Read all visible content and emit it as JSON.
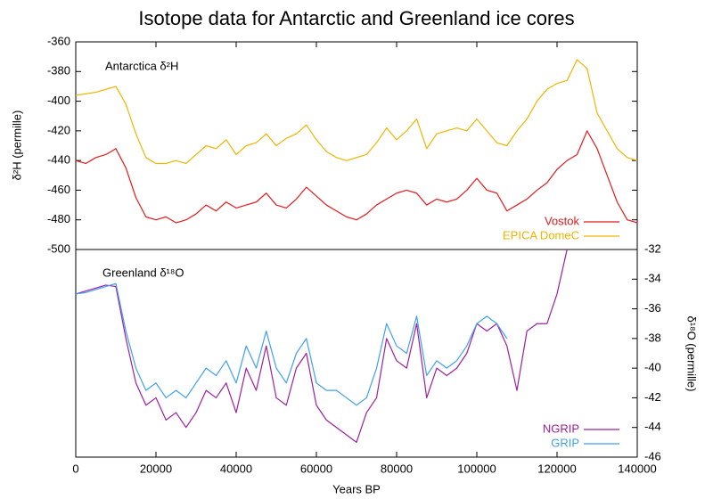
{
  "chart_data": [
    {
      "type": "line",
      "title": "Isotope data for Antarctic and Greenland ice cores",
      "annotation": "Antarctica δ²H",
      "ylabel": "δ²H (permille)",
      "x": [
        0,
        2500,
        5000,
        7500,
        10000,
        12500,
        15000,
        17500,
        20000,
        22500,
        25000,
        27500,
        30000,
        32500,
        35000,
        37500,
        40000,
        42500,
        45000,
        47500,
        50000,
        52500,
        55000,
        57500,
        60000,
        62500,
        65000,
        67500,
        70000,
        72500,
        75000,
        77500,
        80000,
        82500,
        85000,
        87500,
        90000,
        92500,
        95000,
        97500,
        100000,
        102500,
        105000,
        107500,
        110000,
        112500,
        115000,
        117500,
        120000,
        122500,
        125000,
        127500,
        130000,
        132500,
        135000,
        137500,
        140000
      ],
      "series": [
        {
          "name": "Vostok",
          "color": "#e41a1c",
          "values": [
            -440,
            -442,
            -438,
            -436,
            -432,
            -445,
            -465,
            -478,
            -480,
            -478,
            -482,
            -480,
            -476,
            -470,
            -474,
            -468,
            -472,
            -470,
            -468,
            -462,
            -470,
            -472,
            -466,
            -458,
            -464,
            -470,
            -474,
            -478,
            -480,
            -476,
            -470,
            -466,
            -462,
            -460,
            -462,
            -470,
            -466,
            -468,
            -466,
            -460,
            -452,
            -460,
            -462,
            -474,
            -470,
            -466,
            -460,
            -455,
            -446,
            -440,
            -436,
            -420,
            -432,
            -450,
            -468,
            -480,
            -482
          ]
        },
        {
          "name": "EPICA DomeC",
          "color": "#f0b400",
          "values": [
            -396,
            -395,
            -394,
            -392,
            -390,
            -402,
            -422,
            -438,
            -442,
            -442,
            -440,
            -442,
            -436,
            -430,
            -432,
            -426,
            -436,
            -430,
            -428,
            -422,
            -430,
            -425,
            -422,
            -416,
            -426,
            -434,
            -438,
            -440,
            -438,
            -436,
            -428,
            -418,
            -426,
            -420,
            -412,
            -432,
            -422,
            -420,
            -418,
            -420,
            -412,
            -420,
            -428,
            -430,
            -420,
            -412,
            -400,
            -392,
            -388,
            -386,
            -372,
            -378,
            -408,
            -420,
            -432,
            -438,
            -440
          ]
        }
      ],
      "xlim": [
        0,
        140000
      ],
      "ylim": [
        -500,
        -360
      ],
      "yticks": [
        -500,
        -480,
        -460,
        -440,
        -420,
        -400,
        -380,
        -360
      ],
      "legend": "lower right"
    },
    {
      "type": "line",
      "annotation": "Greenland δ¹⁸O",
      "y2label": "δ¹⁸O (permille)",
      "xlabel": "Years BP",
      "x": [
        0,
        2500,
        5000,
        7500,
        10000,
        12500,
        15000,
        17500,
        20000,
        22500,
        25000,
        27500,
        30000,
        32500,
        35000,
        37500,
        40000,
        42500,
        45000,
        47500,
        50000,
        52500,
        55000,
        57500,
        60000,
        62500,
        65000,
        67500,
        70000,
        72500,
        75000,
        77500,
        80000,
        82500,
        85000,
        87500,
        90000,
        92500,
        95000,
        97500,
        100000,
        102500,
        105000,
        107500,
        110000,
        112500,
        115000,
        117500,
        120000,
        122500,
        125000,
        127500,
        130000,
        132500,
        135000,
        137500,
        140000
      ],
      "series": [
        {
          "name": "NGRIP",
          "color": "#9c1fa0",
          "axis": "y2",
          "values": [
            -35,
            -34.8,
            -34.6,
            -34.4,
            -34.5,
            -38,
            -41,
            -42.5,
            -42,
            -43.5,
            -43,
            -44,
            -43,
            -41.5,
            -42,
            -41,
            -43,
            -40,
            -41.5,
            -38.5,
            -42,
            -42.5,
            -40,
            -39,
            -42.5,
            -43.5,
            -44,
            -44.5,
            -45,
            -43,
            -42,
            -38,
            -39.5,
            -40,
            -37,
            -42,
            -40,
            -40.5,
            -40,
            -39,
            -37,
            -37.5,
            -37,
            -38.5,
            -41.5,
            -37.5,
            -37,
            -37,
            -35,
            -32,
            null,
            null,
            null,
            null,
            null,
            null,
            null
          ]
        },
        {
          "name": "GRIP",
          "color": "#3fa0f0",
          "axis": "y2",
          "values": [
            -35,
            -34.9,
            -34.7,
            -34.5,
            -34.3,
            -37.5,
            -40,
            -41.5,
            -41,
            -42,
            -41.5,
            -42,
            -41,
            -40,
            -40.5,
            -39.5,
            -41,
            -38.5,
            -40,
            -37.5,
            -40,
            -41,
            -39,
            -38,
            -41,
            -41.5,
            -41.5,
            -42,
            -42.5,
            -42,
            -40,
            -37,
            -38.5,
            -39,
            -36.5,
            -40.5,
            -39.5,
            -40,
            -39.5,
            -38.5,
            -37,
            -36.5,
            -37,
            -38,
            null,
            null,
            null,
            null,
            null,
            null,
            null,
            null,
            null,
            null,
            null,
            null,
            null
          ]
        }
      ],
      "xlim": [
        0,
        140000
      ],
      "xticks": [
        0,
        20000,
        40000,
        60000,
        80000,
        100000,
        120000,
        140000
      ],
      "y2lim": [
        -46,
        -32
      ],
      "y2ticks": [
        -46,
        -44,
        -42,
        -40,
        -38,
        -36,
        -34,
        -32
      ],
      "legend": "lower right"
    }
  ]
}
